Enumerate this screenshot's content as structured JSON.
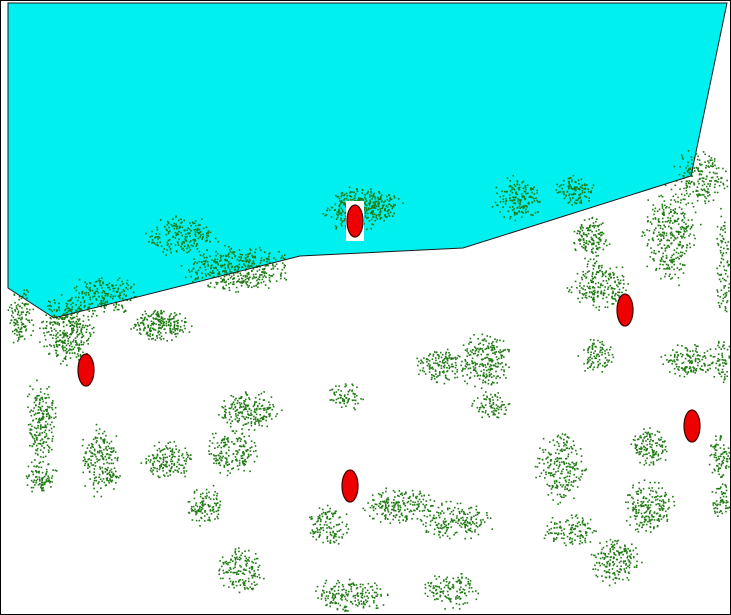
{
  "colors": {
    "background": "#ffffff",
    "frame": "#000000",
    "water_fill": "#00f0f0",
    "water_outline": "#1a1a1a",
    "vegetation": "#1e7a12",
    "marker_fill": "#ee0000",
    "marker_outline": "#400000",
    "marker_highlight": "#ffffff"
  },
  "icons": {
    "water_region": "water-polygon",
    "vegetation": "stippled-bush-cluster",
    "unit": "red-oval-marker"
  },
  "markers": [
    {
      "name": "unit-marker-1",
      "highlighted": true
    },
    {
      "name": "unit-marker-2",
      "highlighted": false
    },
    {
      "name": "unit-marker-3",
      "highlighted": false
    },
    {
      "name": "unit-marker-4",
      "highlighted": false
    },
    {
      "name": "unit-marker-5",
      "highlighted": false
    }
  ]
}
